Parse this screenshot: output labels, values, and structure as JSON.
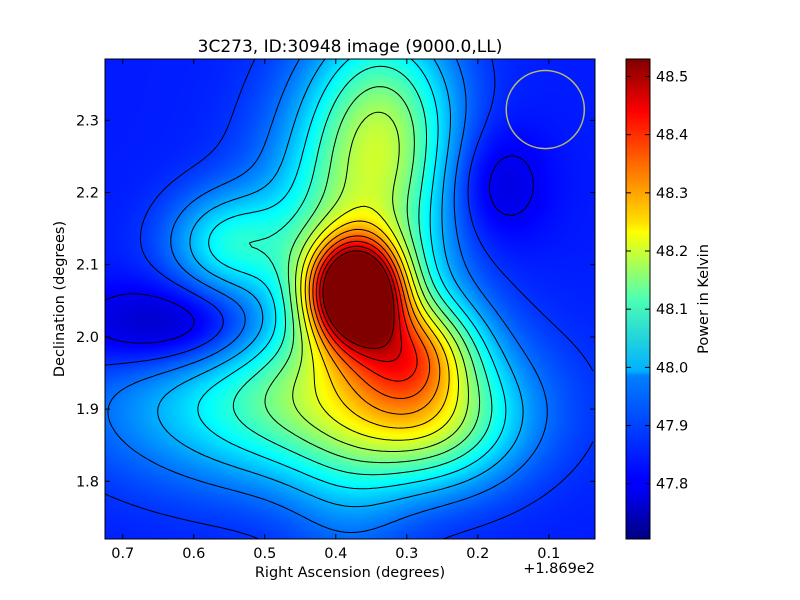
{
  "chart_data": {
    "type": "heatmap",
    "title": "3C273, ID:30948 image (9000.0,LL)",
    "xlabel": "Right Ascension (degrees)",
    "ylabel": "Declination (degrees)",
    "x_offset_label": "+1.869e2",
    "xlim": [
      0.725,
      0.035
    ],
    "ylim": [
      1.72,
      2.385
    ],
    "x_ticks": [
      0.7,
      0.6,
      0.5,
      0.4,
      0.3,
      0.2,
      0.1
    ],
    "x_tick_labels": [
      "0.7",
      "0.6",
      "0.5",
      "0.4",
      "0.3",
      "0.2",
      "0.1"
    ],
    "y_ticks": [
      1.8,
      1.9,
      2.0,
      2.1,
      2.2,
      2.3
    ],
    "y_tick_labels": [
      "1.8",
      "1.9",
      "2.0",
      "2.1",
      "2.2",
      "2.3"
    ],
    "colorbar": {
      "label": "Power in Kelvin",
      "vmin": 47.705,
      "vmax": 48.53,
      "ticks": [
        47.8,
        47.9,
        48.0,
        48.1,
        48.2,
        48.3,
        48.4,
        48.5
      ],
      "tick_labels": [
        "47.8",
        "47.9",
        "48.0",
        "48.1",
        "48.2",
        "48.3",
        "48.4",
        "48.5"
      ],
      "colormap": "jet"
    },
    "background_level": 47.83,
    "features": [
      {
        "kind": "peak",
        "ra": 0.372,
        "dec": 2.063,
        "peak": 48.53,
        "sigma_ra": 0.045,
        "sigma_dec": 0.05
      },
      {
        "kind": "ridge",
        "ra": 0.372,
        "dec": 2.12,
        "peak": 48.08,
        "sigma_ra": 0.09,
        "sigma_dec": 0.15
      },
      {
        "kind": "ridge",
        "ra": 0.29,
        "dec": 1.98,
        "peak": 48.1,
        "sigma_ra": 0.06,
        "sigma_dec": 0.05
      },
      {
        "kind": "ridge",
        "ra": 0.33,
        "dec": 2.3,
        "peak": 48.05,
        "sigma_ra": 0.07,
        "sigma_dec": 0.1
      },
      {
        "kind": "plateau",
        "ra": 0.44,
        "dec": 1.91,
        "peak": 48.08,
        "sigma_ra": 0.18,
        "sigma_dec": 0.08
      },
      {
        "kind": "plateau",
        "ra": 0.26,
        "dec": 1.88,
        "peak": 48.02,
        "sigma_ra": 0.08,
        "sigma_dec": 0.06
      },
      {
        "kind": "plateau",
        "ra": 0.55,
        "dec": 2.13,
        "peak": 48.0,
        "sigma_ra": 0.06,
        "sigma_dec": 0.05
      },
      {
        "kind": "trough",
        "ra": 0.62,
        "dec": 2.01,
        "peak": 47.71,
        "sigma_ra": 0.1,
        "sigma_dec": 0.045
      },
      {
        "kind": "trough",
        "ra": 0.185,
        "dec": 2.21,
        "peak": 47.76,
        "sigma_ra": 0.055,
        "sigma_dec": 0.06
      },
      {
        "kind": "trough",
        "ra": 0.38,
        "dec": 1.78,
        "peak": 47.88,
        "sigma_ra": 0.06,
        "sigma_dec": 0.08
      }
    ],
    "contour_levels": [
      47.75,
      47.8,
      47.85,
      47.9,
      47.95,
      48.0,
      48.05,
      48.1,
      48.15,
      48.2,
      48.25,
      48.3,
      48.35,
      48.4,
      48.45,
      48.5
    ],
    "beam": {
      "ra": 0.105,
      "dec": 2.315,
      "radius_deg": 0.055,
      "color": "#b9b96a"
    },
    "grid": false,
    "legend": "none"
  }
}
